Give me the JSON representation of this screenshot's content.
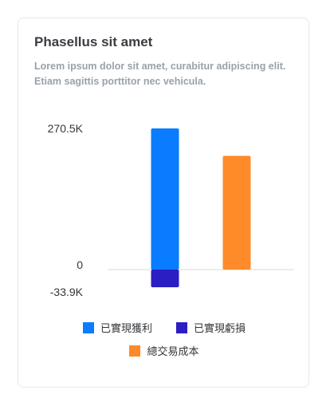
{
  "card": {
    "title": "Phasellus sit amet",
    "description": "Lorem ipsum dolor sit amet, curabitur adipiscing elit. Etiam sagittis porttitor nec vehicula."
  },
  "chart_data": {
    "type": "bar",
    "title": "",
    "xlabel": "",
    "ylabel": "",
    "ylim": [
      -33900,
      270500
    ],
    "y_tick_labels": [
      "270.5K",
      "0",
      "-33.9K"
    ],
    "y_ticks": [
      270500,
      0,
      -33900
    ],
    "grid": false,
    "legend_position": "bottom",
    "series": [
      {
        "name": "已實現獲利",
        "color": "#0a7cff",
        "values": [
          270500
        ],
        "slot": 0
      },
      {
        "name": "已實現虧損",
        "color": "#2b1ec2",
        "values": [
          -33900
        ],
        "slot": 0
      },
      {
        "name": "總交易成本",
        "color": "#ff8a29",
        "values": [
          218000
        ],
        "slot": 1
      }
    ],
    "axis_line_color": "#d5d8dc"
  }
}
